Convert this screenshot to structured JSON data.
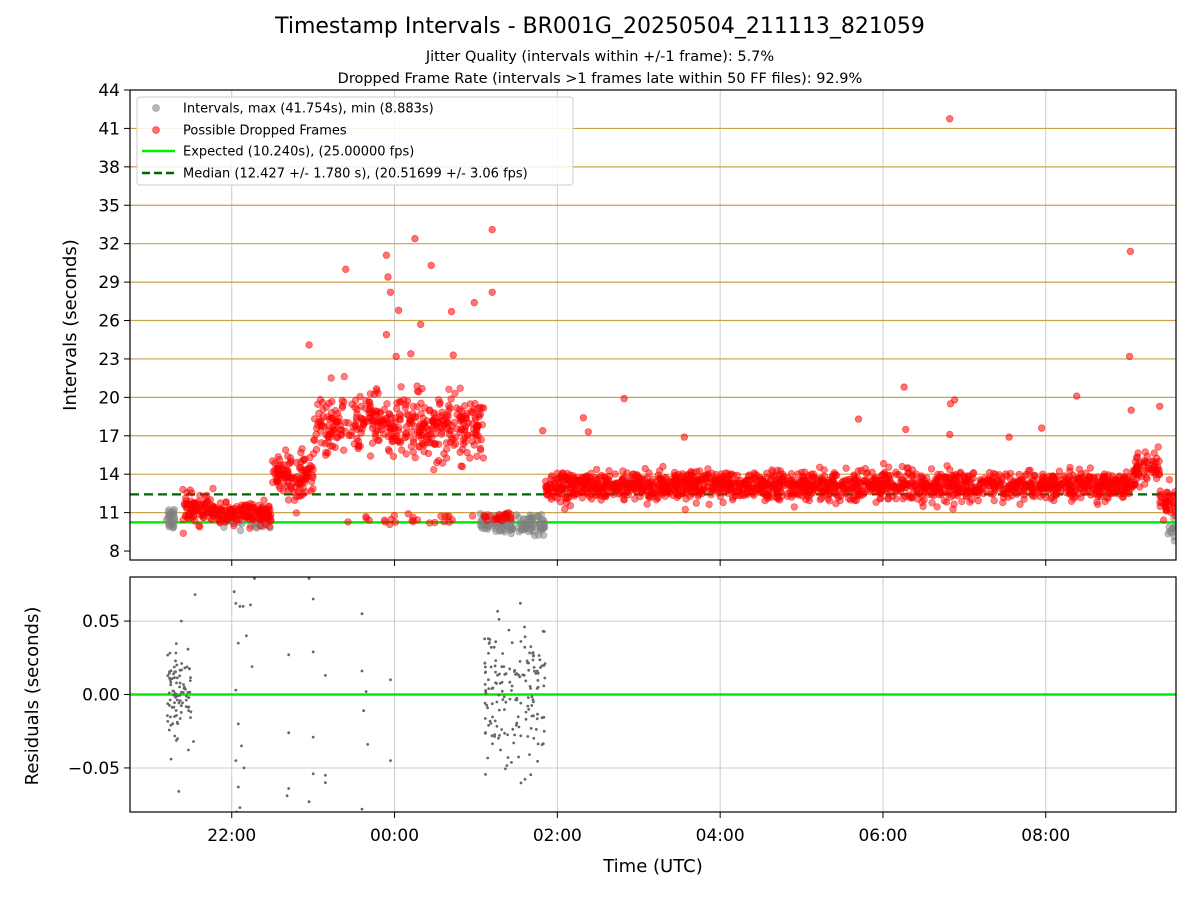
{
  "title": "Timestamp Intervals - BR001G_20250504_211113_821059",
  "subtitle_1": "Jitter Quality (intervals within +/-1 frame): 5.7%",
  "subtitle_2": "Dropped Frame Rate (intervals >1 frames late within 50 FF files): 92.9%",
  "colors": {
    "intervals": "#808080",
    "dropped": "#ff0000",
    "expected": "#00ee00",
    "median": "#006400",
    "threshold_lines": "#c8a44a",
    "grid": "#cccccc"
  },
  "chart_data": [
    {
      "type": "scatter",
      "xlabel": "",
      "ylabel": "Intervals (seconds)",
      "x_range_hours": [
        -3.25,
        9.6
      ],
      "ylim": [
        7.3,
        44
      ],
      "yticks": [
        8,
        11,
        14,
        17,
        20,
        23,
        26,
        29,
        32,
        35,
        38,
        41,
        44
      ],
      "ytick_labels": [
        "8",
        "11",
        "14",
        "17",
        "20",
        "23",
        "26",
        "29",
        "32",
        "35",
        "38",
        "41",
        "44"
      ],
      "threshold_lines": [
        11,
        14,
        17,
        20,
        23,
        26,
        29,
        32,
        35,
        38,
        41
      ],
      "grid": "vertical at major x ticks",
      "legend_position": "upper-left",
      "legend": [
        {
          "label": "Intervals, max (41.754s), min (8.883s)",
          "kind": "scatter",
          "color": "#808080"
        },
        {
          "label": "Possible Dropped Frames",
          "kind": "scatter",
          "color": "#ff0000"
        },
        {
          "label": "Expected (10.240s), (25.00000 fps)",
          "kind": "line",
          "color": "#00ee00"
        },
        {
          "label": "Median (12.427 +/- 1.780 s), (20.51699 +/- 3.06 fps)",
          "kind": "dashed",
          "color": "#006400"
        }
      ],
      "expected_line": 10.24,
      "median_line": 12.427,
      "max_interval": 41.754,
      "min_interval": 8.883,
      "series": [
        {
          "name": "Intervals, max (41.754s), min (8.883s)",
          "segments": [
            {
              "x_start": -2.8,
              "x_end": -2.7,
              "y_center": 10.6,
              "spread": 0.9,
              "n": 25
            },
            {
              "x_start": -2.1,
              "x_end": -1.5,
              "y_center": 10.4,
              "spread": 0.6,
              "n": 30
            },
            {
              "x_start": 1.05,
              "x_end": 1.85,
              "y_center": 10.1,
              "spread": 0.7,
              "n": 120
            },
            {
              "x_start": 9.5,
              "x_end": 9.6,
              "y_center": 9.6,
              "spread": 0.8,
              "n": 12
            }
          ]
        },
        {
          "name": "Possible Dropped Frames",
          "segments": [
            {
              "x_start": -2.6,
              "x_end": -2.2,
              "y_center": 11.3,
              "spread": 1.0,
              "n": 90
            },
            {
              "x_start": -2.2,
              "x_end": -1.5,
              "y_center": 10.9,
              "spread": 0.7,
              "n": 150
            },
            {
              "x_start": -1.5,
              "x_end": -1.0,
              "y_center": 13.8,
              "spread": 1.8,
              "n": 120
            },
            {
              "x_start": -1.0,
              "x_end": 1.1,
              "y_center": 17.8,
              "spread": 2.2,
              "n": 420
            },
            {
              "x_start": -0.6,
              "x_end": 1.0,
              "y_center": 10.5,
              "spread": 0.4,
              "n": 25
            },
            {
              "x_start": 1.1,
              "x_end": 1.45,
              "y_center": 10.6,
              "spread": 0.4,
              "n": 25
            },
            {
              "x_start": 1.85,
              "x_end": 9.1,
              "y_center": 13.1,
              "spread": 1.0,
              "n": 1700
            },
            {
              "x_start": 9.1,
              "x_end": 9.4,
              "y_center": 14.4,
              "spread": 1.2,
              "n": 60
            },
            {
              "x_start": 9.4,
              "x_end": 9.6,
              "y_center": 11.8,
              "spread": 0.9,
              "n": 40
            }
          ],
          "outliers": [
            [
              -0.6,
              30.0
            ],
            [
              -0.1,
              31.1
            ],
            [
              -0.08,
              29.4
            ],
            [
              -0.05,
              28.2
            ],
            [
              0.25,
              32.4
            ],
            [
              0.45,
              30.3
            ],
            [
              0.2,
              23.4
            ],
            [
              0.32,
              25.7
            ],
            [
              0.7,
              26.7
            ],
            [
              0.98,
              27.4
            ],
            [
              1.2,
              28.2
            ],
            [
              1.2,
              33.1
            ],
            [
              -1.05,
              24.1
            ],
            [
              0.02,
              23.2
            ],
            [
              0.72,
              23.3
            ],
            [
              0.05,
              26.8
            ],
            [
              -0.1,
              24.9
            ],
            [
              1.82,
              17.4
            ],
            [
              2.32,
              18.4
            ],
            [
              2.38,
              17.3
            ],
            [
              2.82,
              19.9
            ],
            [
              3.56,
              16.9
            ],
            [
              5.7,
              18.3
            ],
            [
              6.26,
              20.8
            ],
            [
              6.83,
              19.5
            ],
            [
              6.88,
              19.8
            ],
            [
              6.28,
              17.5
            ],
            [
              6.82,
              17.1
            ],
            [
              7.55,
              16.9
            ],
            [
              7.95,
              17.6
            ],
            [
              8.38,
              20.1
            ],
            [
              9.04,
              31.4
            ],
            [
              9.03,
              23.2
            ],
            [
              9.05,
              19.0
            ],
            [
              9.4,
              19.3
            ],
            [
              6.82,
              41.75
            ]
          ]
        }
      ]
    },
    {
      "type": "scatter",
      "xlabel": "Time (UTC)",
      "ylabel": "Residuals (seconds)",
      "x_range_hours": [
        -3.25,
        9.6
      ],
      "ylim": [
        -0.08,
        0.08
      ],
      "yticks": [
        -0.05,
        0.0,
        0.05
      ],
      "ytick_labels": [
        "−0.05",
        "0.00",
        "0.05"
      ],
      "xticks": [
        -2,
        0,
        2,
        4,
        6,
        8
      ],
      "xtick_labels": [
        "22:00",
        "00:00",
        "02:00",
        "04:00",
        "06:00",
        "08:00"
      ],
      "zero_line": 0.0,
      "grid": "both",
      "series": [
        {
          "name": "",
          "segments": [
            {
              "x_start": -2.8,
              "x_end": -2.5,
              "y_center": 0.0,
              "spread": 0.035,
              "n": 90
            },
            {
              "x_start": 1.1,
              "x_end": 1.85,
              "y_center": 0.0,
              "spread": 0.05,
              "n": 170
            }
          ],
          "points": [
            [
              -2.45,
              0.068
            ],
            [
              -2.47,
              -0.032
            ],
            [
              -2.65,
              -0.066
            ],
            [
              -2.62,
              0.05
            ],
            [
              -1.97,
              0.07
            ],
            [
              -1.95,
              0.062
            ],
            [
              -1.92,
              0.035
            ],
            [
              -1.9,
              0.06
            ],
            [
              -1.86,
              0.06
            ],
            [
              -1.82,
              0.04
            ],
            [
              -1.77,
              0.061
            ],
            [
              -1.72,
              0.079
            ],
            [
              -1.95,
              0.003
            ],
            [
              -1.92,
              -0.02
            ],
            [
              -1.88,
              -0.035
            ],
            [
              -1.95,
              -0.045
            ],
            [
              -1.92,
              -0.063
            ],
            [
              -1.9,
              -0.077
            ],
            [
              -1.94,
              -0.08
            ],
            [
              -1.85,
              -0.05
            ],
            [
              -1.75,
              0.019
            ],
            [
              -1.3,
              0.027
            ],
            [
              -1.3,
              -0.026
            ],
            [
              -1.3,
              -0.064
            ],
            [
              -1.32,
              -0.069
            ],
            [
              -1.05,
              0.079
            ],
            [
              -1.0,
              0.065
            ],
            [
              -1.05,
              -0.073
            ],
            [
              -1.0,
              -0.054
            ],
            [
              -0.85,
              -0.055
            ],
            [
              -0.85,
              -0.06
            ],
            [
              -0.85,
              0.013
            ],
            [
              -1.0,
              -0.029
            ],
            [
              -1.0,
              0.029
            ],
            [
              -0.6,
              -0.081
            ],
            [
              -0.4,
              0.055
            ],
            [
              -0.4,
              0.016
            ],
            [
              -0.38,
              -0.011
            ],
            [
              -0.35,
              0.002
            ],
            [
              -0.33,
              -0.034
            ],
            [
              -0.4,
              -0.078
            ],
            [
              -0.05,
              0.01
            ],
            [
              -0.05,
              -0.045
            ]
          ]
        }
      ]
    }
  ]
}
